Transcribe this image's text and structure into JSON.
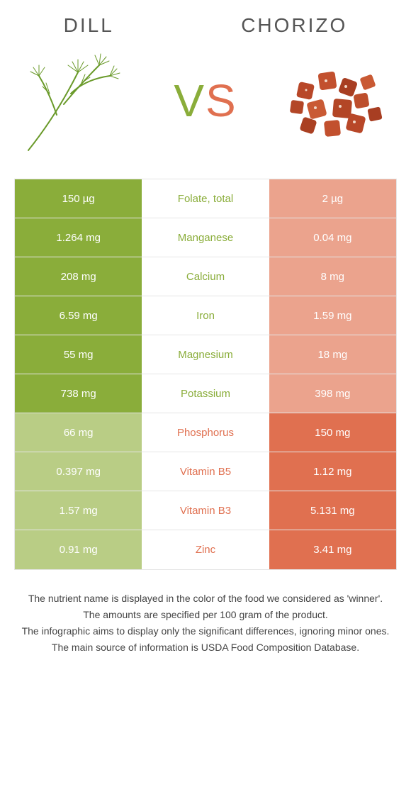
{
  "header": {
    "left_title": "Dill",
    "right_title": "Chorizo",
    "vs_v": "V",
    "vs_s": "S"
  },
  "colors": {
    "green_strong": "#8aad3a",
    "green_light": "#b9cd85",
    "orange_strong": "#e07050",
    "orange_light": "#eba38d",
    "text_dark": "#444"
  },
  "rows": [
    {
      "left": "150 µg",
      "label": "Folate, total",
      "right": "2 µg",
      "winner": "left"
    },
    {
      "left": "1.264 mg",
      "label": "Manganese",
      "right": "0.04 mg",
      "winner": "left"
    },
    {
      "left": "208 mg",
      "label": "Calcium",
      "right": "8 mg",
      "winner": "left"
    },
    {
      "left": "6.59 mg",
      "label": "Iron",
      "right": "1.59 mg",
      "winner": "left"
    },
    {
      "left": "55 mg",
      "label": "Magnesium",
      "right": "18 mg",
      "winner": "left"
    },
    {
      "left": "738 mg",
      "label": "Potassium",
      "right": "398 mg",
      "winner": "left"
    },
    {
      "left": "66 mg",
      "label": "Phosphorus",
      "right": "150 mg",
      "winner": "right"
    },
    {
      "left": "0.397 mg",
      "label": "Vitamin B5",
      "right": "1.12 mg",
      "winner": "right"
    },
    {
      "left": "1.57 mg",
      "label": "Vitamin B3",
      "right": "5.131 mg",
      "winner": "right"
    },
    {
      "left": "0.91 mg",
      "label": "Zinc",
      "right": "3.41 mg",
      "winner": "right"
    }
  ],
  "footnotes": {
    "l1": "The nutrient name is displayed in the color of the food we considered as 'winner'.",
    "l2": "The amounts are specified per 100 gram of the product.",
    "l3": "The infographic aims to display only the significant differences, ignoring minor ones.",
    "l4": "The main source of information is USDA Food Composition Database."
  }
}
